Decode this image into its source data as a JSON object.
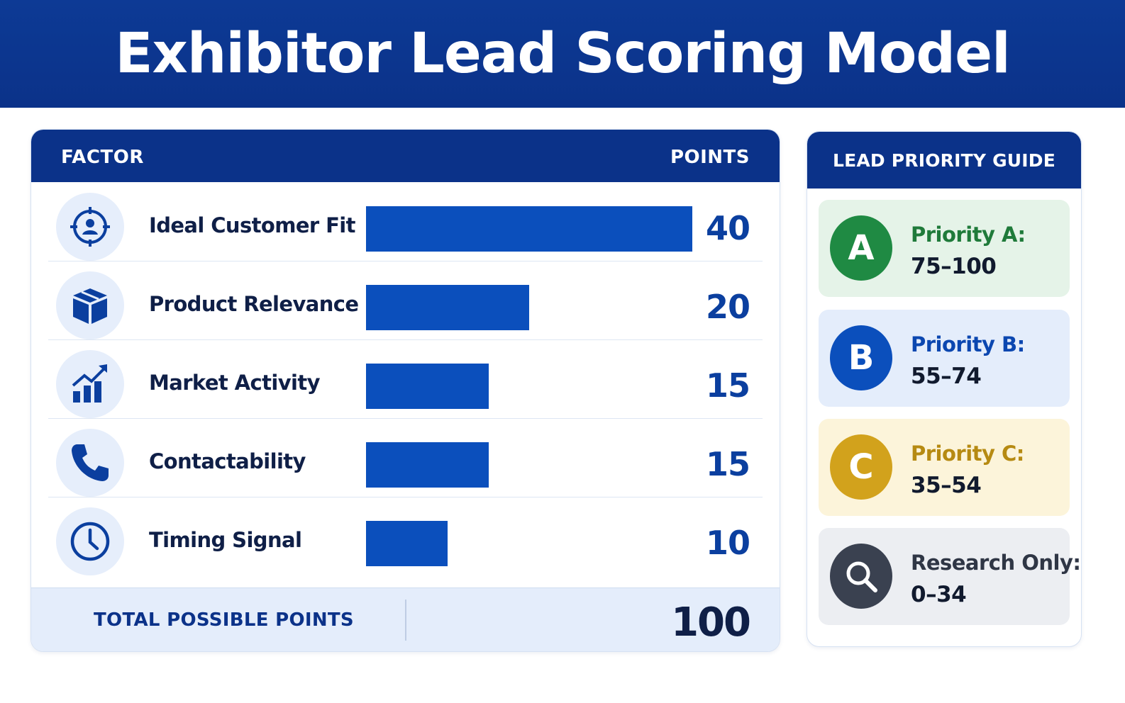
{
  "title": "Exhibitor Lead Scoring Model",
  "table": {
    "header_factor": "FACTOR",
    "header_points": "POINTS",
    "total_label": "TOTAL POSSIBLE POINTS",
    "total_value": "100"
  },
  "chart_data": {
    "type": "bar",
    "orientation": "horizontal",
    "categories": [
      "Ideal Customer Fit",
      "Product Relevance",
      "Market Activity",
      "Contactability",
      "Timing Signal"
    ],
    "values": [
      40,
      20,
      15,
      15,
      10
    ],
    "value_labels": [
      "40",
      "20",
      "15",
      "15",
      "10"
    ],
    "icons": [
      "target-user-icon",
      "box-icon",
      "chart-growth-icon",
      "phone-icon",
      "clock-icon"
    ],
    "xlim": [
      0,
      40
    ],
    "grid": false,
    "bar_color": "#0b4fbc"
  },
  "guide": {
    "title": "LEAD PRIORITY GUIDE",
    "tiers": [
      {
        "badge": "A",
        "name": "Priority A:",
        "range": "75–100",
        "color": "#1f8a43",
        "bg": "#e5f3e8",
        "text_color": "#1f7a3a"
      },
      {
        "badge": "B",
        "name": "Priority B:",
        "range": "55–74",
        "color": "#0b4fbc",
        "bg": "#e4edfb",
        "text_color": "#0b47b0"
      },
      {
        "badge": "C",
        "name": "Priority C:",
        "range": "35–54",
        "color": "#d2a21c",
        "bg": "#fcf4da",
        "text_color": "#b68a12"
      },
      {
        "badge": "",
        "name": "Research Only:",
        "range": "0–34",
        "color": "#3a4150",
        "bg": "#eceef2",
        "text_color": "#2f3645",
        "icon": "magnifier-icon"
      }
    ]
  }
}
